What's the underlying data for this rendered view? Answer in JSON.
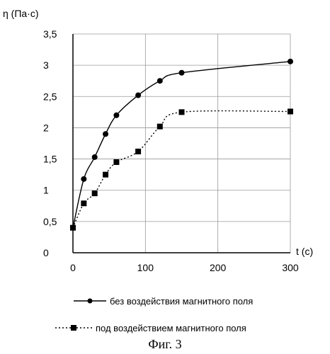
{
  "chart_data": {
    "type": "line",
    "ylabel": "η (Па·с)",
    "xlabel": "t (c)",
    "xlim": [
      0,
      300
    ],
    "ylim": [
      0,
      3.5
    ],
    "xticks": [
      0,
      100,
      200,
      300
    ],
    "xtick_labels": [
      "0",
      "100",
      "200",
      "300"
    ],
    "yticks": [
      0,
      0.5,
      1,
      1.5,
      2,
      2.5,
      3,
      3.5
    ],
    "ytick_labels": [
      "0",
      "0,5",
      "1",
      "1,5",
      "2",
      "2,5",
      "3",
      "3,5"
    ],
    "grid": true,
    "legend_position": "bottom",
    "series": [
      {
        "name": "без воздействия магнитного поля",
        "marker": "circle",
        "line_style": "solid",
        "color": "#000000",
        "x": [
          0,
          15,
          30,
          45,
          60,
          90,
          120,
          150,
          300
        ],
        "y": [
          0.4,
          1.18,
          1.53,
          1.9,
          2.2,
          2.52,
          2.75,
          2.88,
          3.06
        ]
      },
      {
        "name": "под воздействием магнитного поля",
        "marker": "square",
        "line_style": "dotted",
        "color": "#000000",
        "x": [
          0,
          15,
          30,
          45,
          60,
          90,
          120,
          150,
          300
        ],
        "y": [
          0.4,
          0.79,
          0.95,
          1.25,
          1.45,
          1.62,
          2.02,
          2.25,
          2.26
        ]
      }
    ]
  },
  "caption": "Фиг. 3"
}
